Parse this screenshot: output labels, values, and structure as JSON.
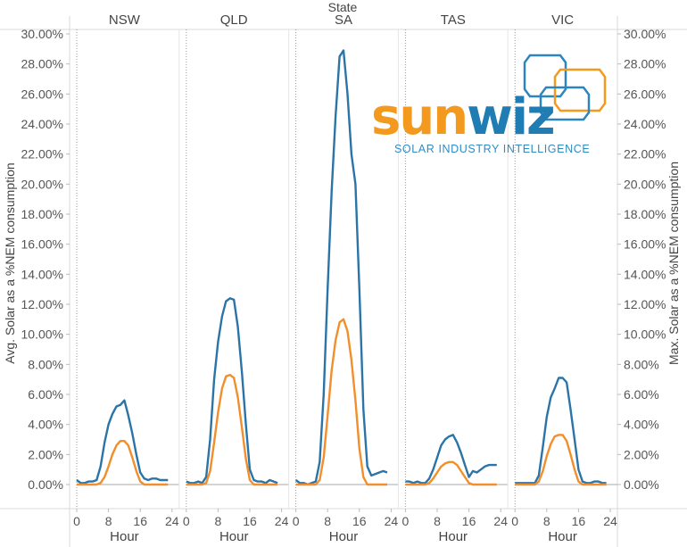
{
  "chart_data": {
    "type": "line",
    "panel_group_title": "State",
    "panels": [
      "NSW",
      "QLD",
      "SA",
      "TAS",
      "VIC"
    ],
    "x_ticks": [
      0,
      8,
      16,
      24
    ],
    "xlabel": "Hour",
    "ylabel_left": "Avg. Solar as a %NEM consumption",
    "ylabel_right": "Max. Solar as a %NEM consumption",
    "ylim": [
      0,
      30
    ],
    "y_ticks": [
      0,
      2,
      4,
      6,
      8,
      10,
      12,
      14,
      16,
      18,
      20,
      22,
      24,
      26,
      28,
      30
    ],
    "y_tick_labels": [
      "0.00%",
      "2.00%",
      "4.00%",
      "6.00%",
      "8.00%",
      "10.00%",
      "12.00%",
      "14.00%",
      "16.00%",
      "18.00%",
      "20.00%",
      "22.00%",
      "24.00%",
      "26.00%",
      "28.00%",
      "30.00%"
    ],
    "series_colors": {
      "max": "#2b74a8",
      "avg": "#f28e2b"
    },
    "hours": [
      0,
      1,
      2,
      3,
      4,
      5,
      6,
      7,
      8,
      9,
      10,
      11,
      12,
      13,
      14,
      15,
      16,
      17,
      18,
      19,
      20,
      21,
      22,
      23
    ],
    "series": [
      {
        "panel": "NSW",
        "max": [
          0.3,
          0.1,
          0.1,
          0.2,
          0.2,
          0.3,
          1.2,
          2.8,
          4.0,
          4.7,
          5.2,
          5.3,
          5.6,
          4.6,
          3.4,
          2.0,
          0.8,
          0.4,
          0.3,
          0.4,
          0.4,
          0.3,
          0.3,
          0.3
        ],
        "avg": [
          0.0,
          0.0,
          0.0,
          0.0,
          0.0,
          0.0,
          0.1,
          0.5,
          1.2,
          2.0,
          2.6,
          2.9,
          2.9,
          2.6,
          1.8,
          0.9,
          0.2,
          0.0,
          0.0,
          0.0,
          0.0,
          0.0,
          0.0,
          0.0
        ]
      },
      {
        "panel": "QLD",
        "max": [
          0.2,
          0.1,
          0.1,
          0.2,
          0.1,
          0.5,
          3.0,
          7.0,
          9.5,
          11.2,
          12.2,
          12.4,
          12.3,
          10.5,
          7.5,
          4.0,
          1.0,
          0.3,
          0.2,
          0.2,
          0.1,
          0.3,
          0.2,
          0.1
        ],
        "avg": [
          0.0,
          0.0,
          0.0,
          0.0,
          0.0,
          0.1,
          0.9,
          2.8,
          4.8,
          6.4,
          7.2,
          7.3,
          7.1,
          5.8,
          3.8,
          1.7,
          0.3,
          0.0,
          0.0,
          0.0,
          0.0,
          0.0,
          0.0,
          0.0
        ]
      },
      {
        "panel": "SA",
        "max": [
          0.3,
          0.1,
          0.1,
          0.0,
          0.1,
          0.2,
          1.5,
          6.0,
          13.0,
          19.5,
          24.5,
          28.5,
          28.9,
          26.0,
          22.0,
          20.0,
          13.0,
          5.0,
          1.2,
          0.6,
          0.7,
          0.8,
          0.9,
          0.8
        ],
        "avg": [
          0.0,
          0.0,
          0.0,
          0.0,
          0.0,
          0.0,
          0.3,
          1.8,
          4.6,
          7.6,
          9.6,
          10.8,
          11.0,
          10.2,
          8.3,
          5.6,
          2.4,
          0.5,
          0.0,
          0.0,
          0.0,
          0.0,
          0.0,
          0.0
        ]
      },
      {
        "panel": "TAS",
        "max": [
          0.2,
          0.2,
          0.1,
          0.2,
          0.1,
          0.1,
          0.4,
          1.0,
          1.8,
          2.6,
          3.0,
          3.2,
          3.3,
          2.8,
          2.1,
          1.3,
          0.5,
          0.9,
          0.8,
          1.0,
          1.2,
          1.3,
          1.3,
          1.3
        ],
        "avg": [
          0.0,
          0.0,
          0.0,
          0.0,
          0.0,
          0.0,
          0.1,
          0.4,
          0.8,
          1.2,
          1.4,
          1.5,
          1.5,
          1.3,
          0.9,
          0.5,
          0.1,
          0.0,
          0.0,
          0.0,
          0.0,
          0.0,
          0.0,
          0.0
        ]
      },
      {
        "panel": "VIC",
        "max": [
          0.1,
          0.1,
          0.1,
          0.1,
          0.1,
          0.1,
          0.6,
          2.5,
          4.5,
          5.8,
          6.4,
          7.1,
          7.1,
          6.8,
          5.0,
          3.0,
          1.0,
          0.2,
          0.1,
          0.1,
          0.2,
          0.2,
          0.1,
          0.1
        ],
        "avg": [
          0.0,
          0.0,
          0.0,
          0.0,
          0.0,
          0.0,
          0.2,
          0.9,
          1.9,
          2.7,
          3.2,
          3.3,
          3.3,
          2.9,
          2.0,
          1.0,
          0.2,
          0.0,
          0.0,
          0.0,
          0.0,
          0.0,
          0.0,
          0.0
        ]
      }
    ]
  },
  "logo": {
    "word_a": "sun",
    "word_b": "wiz",
    "tagline": "SOLAR INDUSTRY INTELLIGENCE",
    "color_orange": "#f39a1e",
    "color_blue": "#1f7db3"
  }
}
